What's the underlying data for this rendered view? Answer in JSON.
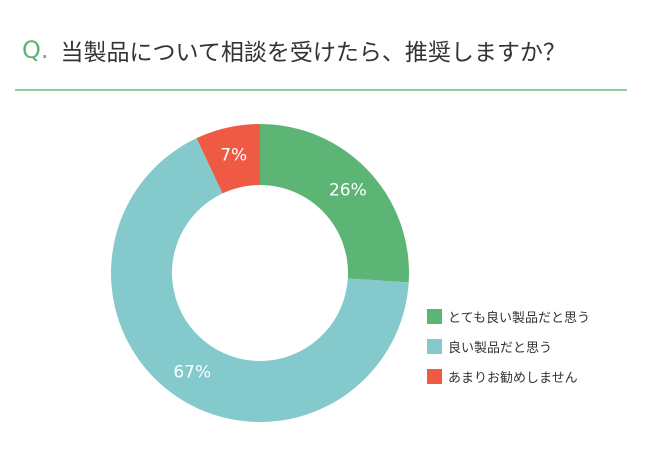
{
  "header": {
    "q_mark": "Q.",
    "question": "当製品について相談を受けたら、推奨しますか？"
  },
  "colors": {
    "accent": "#5cb574",
    "divider": "#8fcf9f"
  },
  "chart_data": {
    "type": "pie",
    "donut": true,
    "title": "当製品について相談を受けたら、推奨しますか？",
    "legend_position": "right",
    "slices": [
      {
        "label": "とても良い製品だと思う",
        "value": 26,
        "value_label": "26%",
        "color": "#5cb574"
      },
      {
        "label": "良い製品だと思う",
        "value": 67,
        "value_label": "67%",
        "color": "#84c9cb"
      },
      {
        "label": "あまりお勧めしません",
        "value": 7,
        "value_label": "7%",
        "color": "#ef5a45"
      }
    ]
  }
}
